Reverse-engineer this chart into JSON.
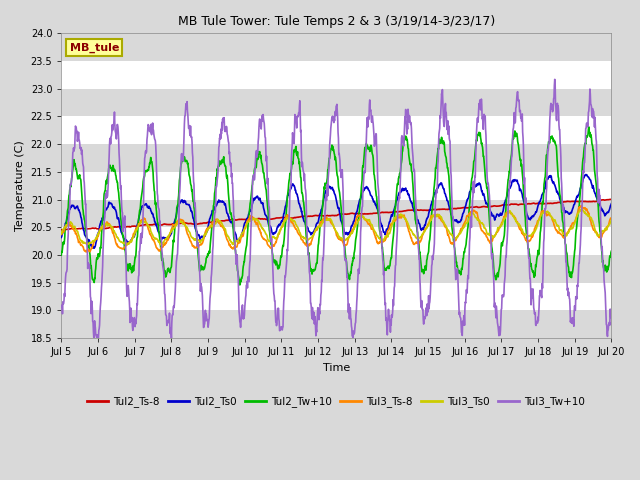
{
  "title": "MB Tule Tower: Tule Temps 2 & 3 (3/19/14-3/23/17)",
  "xlabel": "Time",
  "ylabel": "Temperature (C)",
  "ylim": [
    18.5,
    24.0
  ],
  "yticks": [
    18.5,
    19.0,
    19.5,
    20.0,
    20.5,
    21.0,
    21.5,
    22.0,
    22.5,
    23.0,
    23.5,
    24.0
  ],
  "xtick_labels": [
    "Jul 5",
    "Jul 6",
    "Jul 7",
    "Jul 8",
    "Jul 9",
    "Jul 10",
    "Jul 11",
    "Jul 12",
    "Jul 13",
    "Jul 14",
    "Jul 15",
    "Jul 16",
    "Jul 17",
    "Jul 18",
    "Jul 19",
    "Jul 20"
  ],
  "series": {
    "Tul2_Ts-8": {
      "color": "#cc0000",
      "lw": 1.2
    },
    "Tul2_Ts0": {
      "color": "#0000cc",
      "lw": 1.2
    },
    "Tul2_Tw+10": {
      "color": "#00bb00",
      "lw": 1.2
    },
    "Tul3_Ts-8": {
      "color": "#ff8800",
      "lw": 1.2
    },
    "Tul3_Ts0": {
      "color": "#cccc00",
      "lw": 1.2
    },
    "Tul3_Tw+10": {
      "color": "#9966cc",
      "lw": 1.2
    }
  },
  "watermark": "MB_tule",
  "fig_bg_color": "#d9d9d9",
  "plot_bg_color": "#ffffff",
  "band_color": "#d9d9d9",
  "grid_color": "#ffffff"
}
